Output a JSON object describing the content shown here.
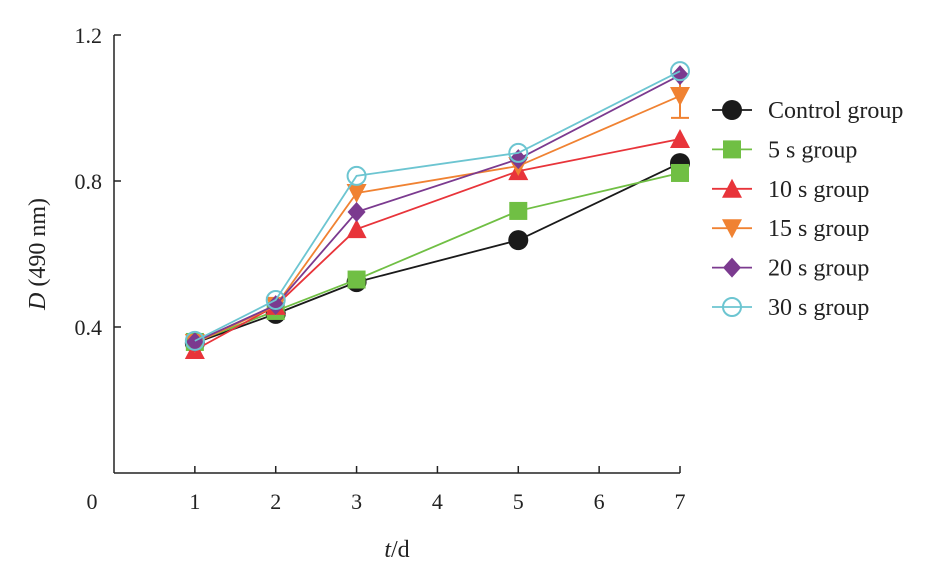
{
  "chart_data": {
    "type": "line",
    "title": "",
    "xlabel_italic": "t",
    "xlabel_rest": "/d",
    "ylabel_italic": "D",
    "ylabel_rest": " (490 nm)",
    "xlim": [
      0,
      7
    ],
    "ylim": [
      0,
      1.2
    ],
    "xticks": [
      0,
      1,
      2,
      3,
      4,
      5,
      6,
      7
    ],
    "yticks": [
      0.4,
      0.8,
      1.2
    ],
    "ytick_labels": [
      "0.4",
      "0.8",
      "1.2"
    ],
    "grid": false,
    "legend_position": "right",
    "x": [
      1,
      2,
      3,
      5,
      7
    ],
    "series": [
      {
        "name": "Control group",
        "color": "#1a1a1a",
        "marker": "circle",
        "values": [
          0.356,
          0.436,
          0.523,
          0.638,
          0.849
        ]
      },
      {
        "name": "5 s group",
        "color": "#70bf44",
        "marker": "square",
        "values": [
          0.359,
          0.444,
          0.53,
          0.718,
          0.822
        ]
      },
      {
        "name": "10 s group",
        "color": "#e8343a",
        "marker": "triangle-up",
        "values": [
          0.337,
          0.458,
          0.668,
          0.827,
          0.915
        ]
      },
      {
        "name": "15 s group",
        "color": "#f08232",
        "marker": "triangle-down",
        "values": [
          0.356,
          0.458,
          0.767,
          0.841,
          1.033
        ],
        "error": [
          0,
          0,
          0,
          0,
          0.06
        ]
      },
      {
        "name": "20 s group",
        "color": "#7b3a8f",
        "marker": "diamond",
        "values": [
          0.359,
          0.46,
          0.715,
          0.86,
          1.09
        ]
      },
      {
        "name": "30 s group",
        "color": "#6cc5d1",
        "marker": "open-circle",
        "values": [
          0.362,
          0.474,
          0.814,
          0.877,
          1.101
        ]
      }
    ]
  }
}
